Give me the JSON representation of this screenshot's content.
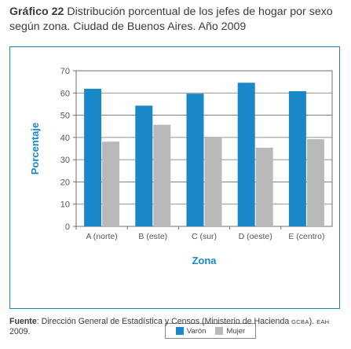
{
  "title": {
    "label": "Gráfico 22",
    "text": "Distribución porcentual de los jefes de hogar por sexo según zona. Ciudad de Buenos Aires. Año 2009"
  },
  "legend": {
    "male": "Varón",
    "female": "Mujer"
  },
  "source": {
    "label": "Fuente",
    "text_main": ": Dirección General de Estadística y Censos (Ministerio de Hacienda ",
    "abbr_org": "GCBA",
    "text_mid": "). ",
    "abbr_survey": "EAH",
    "text_end": " 2009."
  },
  "colors": {
    "male": "#1a87c8",
    "female": "#b9b9b9",
    "frame": "#1a87c8",
    "plot_background": "#ffffff"
  },
  "chart_data": {
    "type": "bar",
    "title": "",
    "xlabel": "Zona",
    "ylabel": "Porcentaje",
    "ylim": [
      0,
      70
    ],
    "yticks": [
      0,
      10,
      20,
      30,
      40,
      50,
      60,
      70
    ],
    "grid": "horizontal",
    "legend_position": "bottom",
    "categories": [
      "A (norte)",
      "B (este)",
      "C (sur)",
      "D (oeste)",
      "E (centro)"
    ],
    "series": [
      {
        "name": "Varón",
        "values": [
          61.9,
          54.3,
          59.7,
          64.6,
          60.8
        ]
      },
      {
        "name": "Mujer",
        "values": [
          38.1,
          45.7,
          40.3,
          35.4,
          39.2
        ]
      }
    ]
  }
}
